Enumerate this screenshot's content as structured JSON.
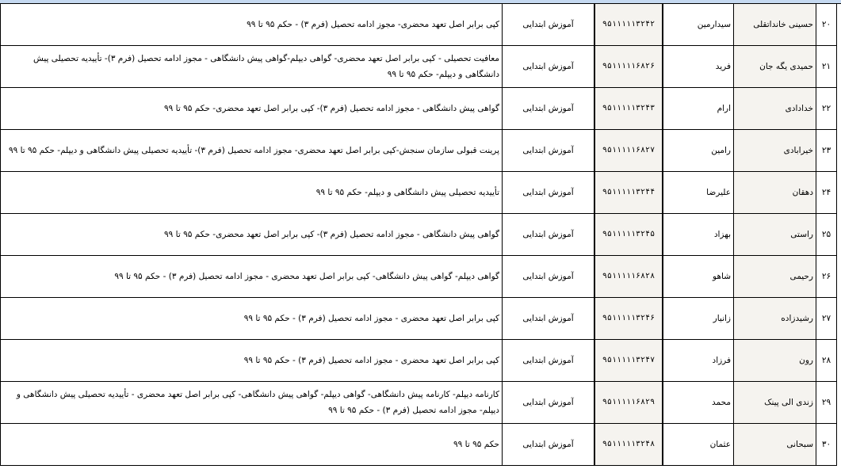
{
  "rows": [
    {
      "num": "۲۰",
      "last_name": "حسینی خانداتقلی",
      "first_name": "سیدارمین",
      "id": "۹۵۱۱۱۱۱۳۲۴۲",
      "program": "آموزش ابتدایی",
      "notes": "کپی برابر اصل تعهد محضری- مجوز ادامه تحصیل (فرم ۳) - حکم ۹۵ تا ۹۹"
    },
    {
      "num": "۲۱",
      "last_name": "حمیدی یگه جان",
      "first_name": "فرید",
      "id": "۹۵۱۱۱۱۱۶۸۲۶",
      "program": "آموزش ابتدایی",
      "notes": "معافیت تحصیلی - کپی برابر اصل تعهد محضری- گواهی دیپلم-گواهی پیش دانشگاهی - مجوز ادامه تحصیل (فرم ۳)- تأییدیه تحصیلی پیش دانشگاهی و دیپلم- حکم ۹۵ تا ۹۹"
    },
    {
      "num": "۲۲",
      "last_name": "خدادادی",
      "first_name": "ارام",
      "id": "۹۵۱۱۱۱۱۳۲۴۳",
      "program": "آموزش ابتدایی",
      "notes": "گواهی پیش دانشگاهی - مجوز ادامه تحصیل (فرم ۳)- کپی برابر اصل تعهد محضری- حکم ۹۵ تا ۹۹"
    },
    {
      "num": "۲۳",
      "last_name": "خیرابادی",
      "first_name": "رامین",
      "id": "۹۵۱۱۱۱۱۶۸۲۷",
      "program": "آموزش ابتدایی",
      "notes": "پرینت قبولی سازمان سنجش-کپی برابر اصل تعهد محضری- مجوز ادامه تحصیل (فرم ۳)- تأییدیه تحصیلی پیش دانشگاهی و دیپلم- حکم ۹۵ تا ۹۹"
    },
    {
      "num": "۲۴",
      "last_name": "دهقان",
      "first_name": "علیرضا",
      "id": "۹۵۱۱۱۱۱۳۲۴۴",
      "program": "آموزش ابتدایی",
      "notes": "تأییدیه تحصیلی پیش دانشگاهی و دیپلم- حکم ۹۵ تا ۹۹"
    },
    {
      "num": "۲۵",
      "last_name": "راستی",
      "first_name": "بهزاد",
      "id": "۹۵۱۱۱۱۱۳۲۴۵",
      "program": "آموزش ابتدایی",
      "notes": "گواهی پیش دانشگاهی - مجوز ادامه تحصیل (فرم ۳)- کپی برابر اصل تعهد محضری- حکم ۹۵ تا ۹۹"
    },
    {
      "num": "۲۶",
      "last_name": "رحیمی",
      "first_name": "شاهو",
      "id": "۹۵۱۱۱۱۱۶۸۲۸",
      "program": "آموزش ابتدایی",
      "notes": "گواهی دیپلم- گواهی پیش دانشگاهی- کپی برابر اصل تعهد محضری - مجوز ادامه تحصیل (فرم ۳) - حکم ۹۵ تا ۹۹"
    },
    {
      "num": "۲۷",
      "last_name": "رشیدزاده",
      "first_name": "زانیار",
      "id": "۹۵۱۱۱۱۱۳۲۴۶",
      "program": "آموزش ابتدایی",
      "notes": "کپی برابر اصل تعهد محضری - مجوز ادامه تحصیل (فرم ۳) - حکم ۹۵ تا ۹۹"
    },
    {
      "num": "۲۸",
      "last_name": "رون",
      "first_name": "فرزاد",
      "id": "۹۵۱۱۱۱۱۳۲۴۷",
      "program": "آموزش ابتدایی",
      "notes": "کپی برابر اصل تعهد محضری - مجوز ادامه تحصیل (فرم ۳) - حکم ۹۵ تا ۹۹"
    },
    {
      "num": "۲۹",
      "last_name": "زندی الی پینک",
      "first_name": "محمد",
      "id": "۹۵۱۱۱۱۱۶۸۲۹",
      "program": "آموزش ابتدایی",
      "notes": "کارنامه دیپلم- کارنامه پیش دانشگاهی- گواهی دیپلم- گواهی پیش دانشگاهی- کپی برابر اصل تعهد محضری - تأییدیه تحصیلی پیش دانشگاهی و دیپلم- مجوز ادامه تحصیل (فرم ۳) - حکم ۹۵ تا ۹۹"
    },
    {
      "num": "۳۰",
      "last_name": "سبحانی",
      "first_name": "عثمان",
      "id": "۹۵۱۱۱۱۱۳۲۴۸",
      "program": "آموزش ابتدایی",
      "notes": "حکم ۹۵ تا ۹۹"
    }
  ]
}
